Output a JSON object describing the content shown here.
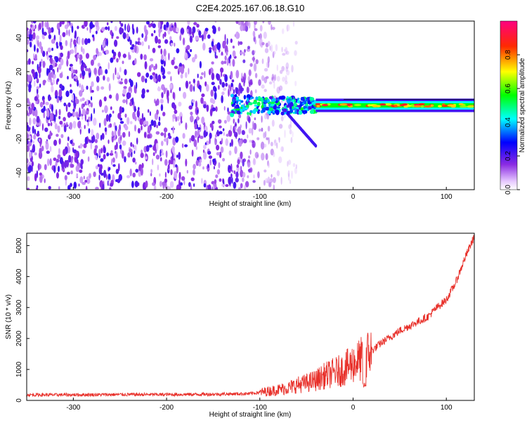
{
  "title": "C2E4.2025.167.06.18.G10",
  "chart_data": [
    {
      "type": "heatmap",
      "xlabel": "Height of straight line (km)",
      "ylabel": "Frequency (Hz)",
      "xlim": [
        -350,
        130
      ],
      "ylim": [
        -50,
        50
      ],
      "x_ticks": [
        -300,
        -200,
        -100,
        0,
        100
      ],
      "x_tick_labels": [
        "-300",
        "-200",
        "-100",
        "0",
        "100"
      ],
      "y_ticks": [
        -40,
        -20,
        0,
        20,
        40
      ],
      "y_tick_labels": [
        "-40",
        "-20",
        "0",
        "20",
        "40"
      ],
      "colorbar": {
        "label": "Normalized spectral amplitude",
        "range": [
          0,
          1
        ],
        "ticks": [
          0.0,
          0.2,
          0.4,
          0.6,
          0.8
        ],
        "tick_labels": [
          "0.0",
          "0.2",
          "0.4",
          "0.6",
          "0.8"
        ],
        "colormap": "rainbow"
      },
      "regions": [
        {
          "description": "broadband noise",
          "x_range": [
            -350,
            -80
          ],
          "f_range": [
            -50,
            50
          ],
          "amplitude": 0.1
        },
        {
          "description": "carrier onset",
          "x_range": [
            -130,
            -40
          ],
          "f_range": [
            -5,
            5
          ],
          "amplitude": 0.35
        },
        {
          "description": "stable carrier",
          "x_range": [
            -40,
            130
          ],
          "f_range": [
            -2,
            2
          ],
          "amplitude": 0.85
        }
      ]
    },
    {
      "type": "line",
      "xlabel": "Height of straight line (km)",
      "ylabel": "SNR (10 * v/v)",
      "xlim": [
        -350,
        130
      ],
      "ylim": [
        0,
        5400
      ],
      "x_ticks": [
        -300,
        -200,
        -100,
        0,
        100
      ],
      "x_tick_labels": [
        "-300",
        "-200",
        "-100",
        "0",
        "100"
      ],
      "y_ticks": [
        0,
        1000,
        2000,
        3000,
        4000,
        5000
      ],
      "y_tick_labels": [
        "0",
        "1000",
        "2000",
        "3000",
        "4000",
        "5000"
      ],
      "series": [
        {
          "color": "#e8302a",
          "x": [
            -350,
            -300,
            -250,
            -200,
            -150,
            -110,
            -100,
            -90,
            -80,
            -70,
            -60,
            -50,
            -40,
            -30,
            -20,
            -10,
            0,
            10,
            20,
            30,
            40,
            50,
            60,
            70,
            80,
            90,
            100,
            110,
            120,
            130
          ],
          "y": [
            180,
            180,
            190,
            190,
            200,
            220,
            260,
            300,
            350,
            400,
            500,
            560,
            650,
            800,
            900,
            1000,
            1200,
            1350,
            1600,
            1850,
            2050,
            2250,
            2400,
            2550,
            2700,
            3000,
            3250,
            3800,
            4600,
            5300
          ]
        }
      ]
    }
  ]
}
